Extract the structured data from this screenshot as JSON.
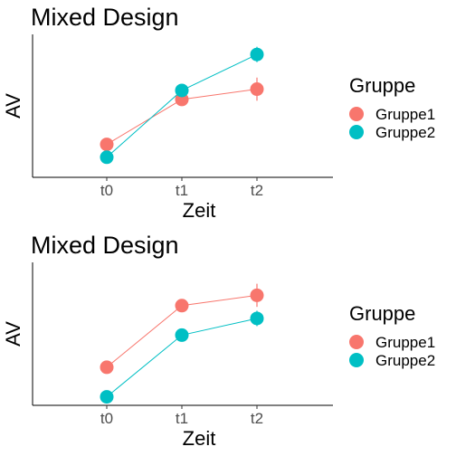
{
  "chart_data": [
    {
      "type": "line",
      "title": "Mixed Design",
      "xlabel": "Zeit",
      "ylabel": "AV",
      "categories": [
        "t0",
        "t1",
        "t2"
      ],
      "legend_title": "Gruppe",
      "legend_position": "right",
      "grid": false,
      "ylim": [
        0,
        1
      ],
      "series": [
        {
          "name": "Gruppe1",
          "color": "#F8766D",
          "values": [
            0.2,
            0.55,
            0.63
          ],
          "error": [
            0.02,
            0.03,
            0.09
          ]
        },
        {
          "name": "Gruppe2",
          "color": "#00BFC4",
          "values": [
            0.1,
            0.62,
            0.9
          ],
          "error": [
            0.02,
            0.03,
            0.06
          ]
        }
      ]
    },
    {
      "type": "line",
      "title": "Mixed Design",
      "xlabel": "Zeit",
      "ylabel": "AV",
      "categories": [
        "t0",
        "t1",
        "t2"
      ],
      "legend_title": "Gruppe",
      "legend_position": "right",
      "grid": false,
      "ylim": [
        0,
        1
      ],
      "series": [
        {
          "name": "Gruppe1",
          "color": "#F8766D",
          "values": [
            0.24,
            0.72,
            0.8
          ],
          "error": [
            0.02,
            0.05,
            0.09
          ]
        },
        {
          "name": "Gruppe2",
          "color": "#00BFC4",
          "values": [
            0.01,
            0.49,
            0.62
          ],
          "error": [
            0.02,
            0.03,
            0.06
          ]
        }
      ]
    }
  ]
}
